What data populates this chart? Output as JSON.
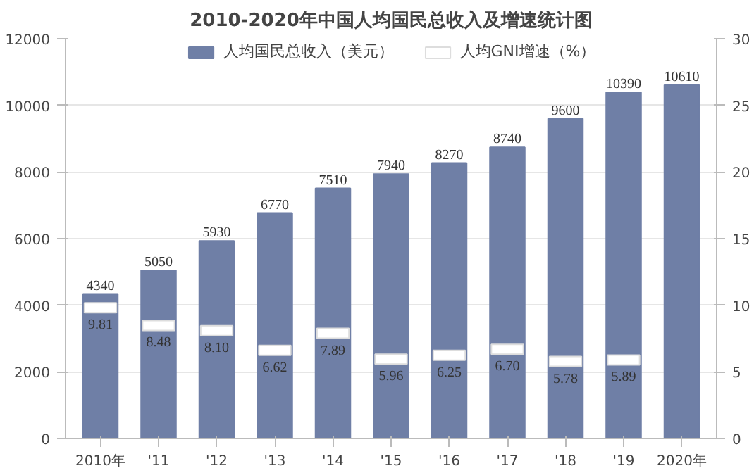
{
  "chart_data": {
    "type": "bar",
    "title": "2010-2020年中国人均国民总收入及增速统计图",
    "categories": [
      "2010年",
      "'11",
      "'12",
      "'13",
      "'14",
      "'15",
      "'16",
      "'17",
      "'18",
      "'19",
      "2020年"
    ],
    "series": [
      {
        "name": "人均国民总收入（美元）",
        "color": "#6f7fa6",
        "values": [
          4340,
          5050,
          5930,
          6770,
          7510,
          7940,
          8270,
          8740,
          9600,
          10390,
          10610
        ]
      },
      {
        "name": "人均GNI增速（%）",
        "type": "scatter",
        "marker": "square",
        "axis": "y2",
        "color": "#ffffff",
        "values": [
          9.81,
          8.48,
          8.1,
          6.62,
          7.89,
          5.96,
          6.25,
          6.7,
          5.78,
          5.89,
          null
        ],
        "value_labels": [
          "9.81",
          "8.48",
          "8.10",
          "6.62",
          "7.89",
          "5.96",
          "6.25",
          "6.70",
          "5.78",
          "5.89",
          null
        ]
      }
    ],
    "ylim": [
      0,
      12000
    ],
    "yticks": [
      0,
      2000,
      4000,
      6000,
      8000,
      10000,
      12000
    ],
    "y2lim": [
      0,
      30
    ],
    "y2ticks": [
      0,
      5,
      10,
      15,
      20,
      25,
      30
    ],
    "grid": "y",
    "legend": "top",
    "data_labels": true
  }
}
